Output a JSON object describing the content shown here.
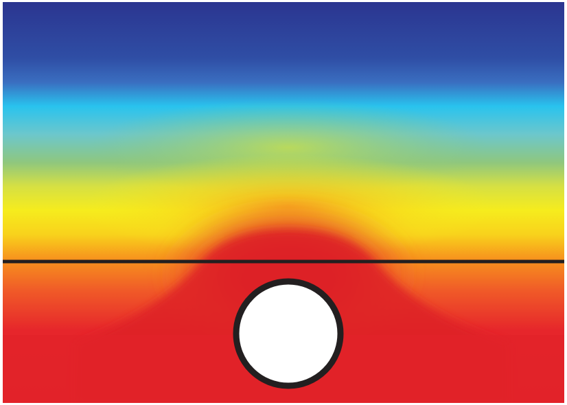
{
  "diagram": {
    "colormap": [
      "#2b3590",
      "#2f5cb0",
      "#29c3ee",
      "#7cc4a0",
      "#f3ea1e",
      "#f7941d",
      "#e3242b"
    ],
    "field_peak_color": "#d81f26",
    "interface_line_color": "#231f20",
    "object_fill": "#ffffff",
    "object_outline": "#231f20"
  }
}
